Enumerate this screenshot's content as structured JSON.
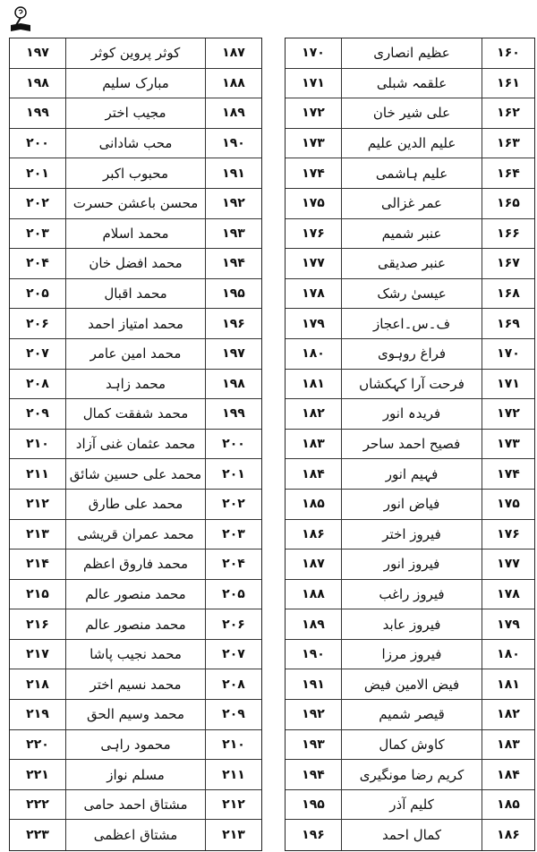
{
  "icon": "book-pen-emblem-icon",
  "right_table": [
    {
      "serial": "۱۶۰",
      "name": "عظیم انصاری",
      "page": "۱۷۰"
    },
    {
      "serial": "۱۶۱",
      "name": "علقمہ شبلی",
      "page": "۱۷۱"
    },
    {
      "serial": "۱۶۲",
      "name": "علی شیر خان",
      "page": "۱۷۲"
    },
    {
      "serial": "۱۶۳",
      "name": "علیم الدین علیم",
      "page": "۱۷۳"
    },
    {
      "serial": "۱۶۴",
      "name": "علیم ہاشمی",
      "page": "۱۷۴"
    },
    {
      "serial": "۱۶۵",
      "name": "عمر غزالی",
      "page": "۱۷۵"
    },
    {
      "serial": "۱۶۶",
      "name": "عنبر شمیم",
      "page": "۱۷۶"
    },
    {
      "serial": "۱۶۷",
      "name": "عنبر صدیقی",
      "page": "۱۷۷"
    },
    {
      "serial": "۱۶۸",
      "name": "عیسیٰ رشک",
      "page": "۱۷۸"
    },
    {
      "serial": "۱۶۹",
      "name": "ف۔س۔اعجاز",
      "page": "۱۷۹"
    },
    {
      "serial": "۱۷۰",
      "name": "فراغ روہوی",
      "page": "۱۸۰"
    },
    {
      "serial": "۱۷۱",
      "name": "فرحت آرا کہکشاں",
      "page": "۱۸۱"
    },
    {
      "serial": "۱۷۲",
      "name": "فریدہ انور",
      "page": "۱۸۲"
    },
    {
      "serial": "۱۷۳",
      "name": "فصیح احمد ساحر",
      "page": "۱۸۳"
    },
    {
      "serial": "۱۷۴",
      "name": "فہیم انور",
      "page": "۱۸۴"
    },
    {
      "serial": "۱۷۵",
      "name": "فیاض انور",
      "page": "۱۸۵"
    },
    {
      "serial": "۱۷۶",
      "name": "فیروز اختر",
      "page": "۱۸۶"
    },
    {
      "serial": "۱۷۷",
      "name": "فیروز انور",
      "page": "۱۸۷"
    },
    {
      "serial": "۱۷۸",
      "name": "فیروز راغب",
      "page": "۱۸۸"
    },
    {
      "serial": "۱۷۹",
      "name": "فیروز عابد",
      "page": "۱۸۹"
    },
    {
      "serial": "۱۸۰",
      "name": "فیروز مرزا",
      "page": "۱۹۰"
    },
    {
      "serial": "۱۸۱",
      "name": "فیض الامین فیض",
      "page": "۱۹۱"
    },
    {
      "serial": "۱۸۲",
      "name": "قیصر شمیم",
      "page": "۱۹۲"
    },
    {
      "serial": "۱۸۳",
      "name": "کاوش کمال",
      "page": "۱۹۳"
    },
    {
      "serial": "۱۸۴",
      "name": "کریم رضا مونگیری",
      "page": "۱۹۴"
    },
    {
      "serial": "۱۸۵",
      "name": "کلیم آذر",
      "page": "۱۹۵"
    },
    {
      "serial": "۱۸۶",
      "name": "کمال احمد",
      "page": "۱۹۶"
    }
  ],
  "left_table": [
    {
      "serial": "۱۸۷",
      "name": "کوثر پروین کوثر",
      "page": "۱۹۷"
    },
    {
      "serial": "۱۸۸",
      "name": "مبارک سلیم",
      "page": "۱۹۸"
    },
    {
      "serial": "۱۸۹",
      "name": "مجیب اختر",
      "page": "۱۹۹"
    },
    {
      "serial": "۱۹۰",
      "name": "محب شادانی",
      "page": "۲۰۰"
    },
    {
      "serial": "۱۹۱",
      "name": "محبوب اکبر",
      "page": "۲۰۱"
    },
    {
      "serial": "۱۹۲",
      "name": "محسن باعشن حسرت",
      "page": "۲۰۲"
    },
    {
      "serial": "۱۹۳",
      "name": "محمد اسلام",
      "page": "۲۰۳"
    },
    {
      "serial": "۱۹۴",
      "name": "محمد افضل خان",
      "page": "۲۰۴"
    },
    {
      "serial": "۱۹۵",
      "name": "محمد اقبال",
      "page": "۲۰۵"
    },
    {
      "serial": "۱۹۶",
      "name": "محمد امتیاز احمد",
      "page": "۲۰۶"
    },
    {
      "serial": "۱۹۷",
      "name": "محمد امین عامر",
      "page": "۲۰۷"
    },
    {
      "serial": "۱۹۸",
      "name": "محمد زاہد",
      "page": "۲۰۸"
    },
    {
      "serial": "۱۹۹",
      "name": "محمد شفقت کمال",
      "page": "۲۰۹"
    },
    {
      "serial": "۲۰۰",
      "name": "محمد عثمان غنی آزاد",
      "page": "۲۱۰"
    },
    {
      "serial": "۲۰۱",
      "name": "محمد علی حسین شائق",
      "page": "۲۱۱"
    },
    {
      "serial": "۲۰۲",
      "name": "محمد علی طارق",
      "page": "۲۱۲"
    },
    {
      "serial": "۲۰۳",
      "name": "محمد عمران قریشی",
      "page": "۲۱۳"
    },
    {
      "serial": "۲۰۴",
      "name": "محمد فاروق اعظم",
      "page": "۲۱۴"
    },
    {
      "serial": "۲۰۵",
      "name": "محمد منصور عالم",
      "page": "۲۱۵"
    },
    {
      "serial": "۲۰۶",
      "name": "محمد منصور عالم",
      "page": "۲۱۶"
    },
    {
      "serial": "۲۰۷",
      "name": "محمد نجیب پاشا",
      "page": "۲۱۷"
    },
    {
      "serial": "۲۰۸",
      "name": "محمد نسیم اختر",
      "page": "۲۱۸"
    },
    {
      "serial": "۲۰۹",
      "name": "محمد وسیم الحق",
      "page": "۲۱۹"
    },
    {
      "serial": "۲۱۰",
      "name": "محمود راہی",
      "page": "۲۲۰"
    },
    {
      "serial": "۲۱۱",
      "name": "مسلم نواز",
      "page": "۲۲۱"
    },
    {
      "serial": "۲۱۲",
      "name": "مشتاق احمد حامی",
      "page": "۲۲۲"
    },
    {
      "serial": "۲۱۳",
      "name": "مشتاق اعظمی",
      "page": "۲۲۳"
    }
  ]
}
